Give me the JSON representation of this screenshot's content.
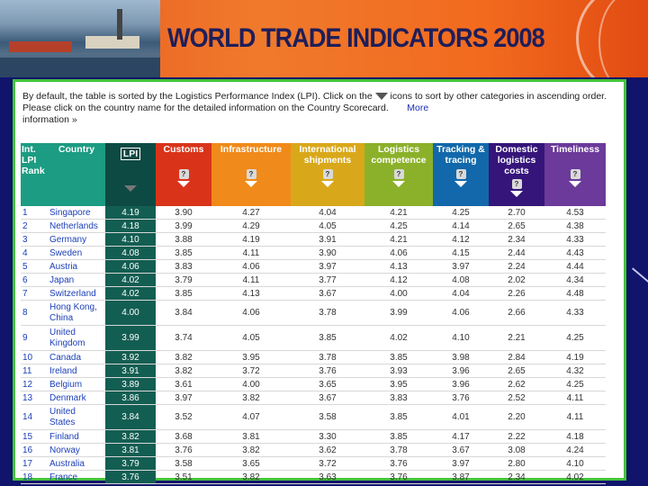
{
  "banner": {
    "title": "WORLD TRADE INDICATORS 2008"
  },
  "intro": {
    "text_before_icon": "By default, the table is sorted by the Logistics Performance Index (LPI). Click on the",
    "text_after_icon": "icons to sort by other categories in ascending order. Please click on the country name for the detailed information on the Country Scorecard.",
    "more_link": "More",
    "info_text": "information »"
  },
  "headers": {
    "rank": "Int. LPI Rank",
    "country": "Country",
    "lpi": "LPI",
    "customs": "Customs",
    "infrastructure": "Infrastructure",
    "international_shipments": "International shipments",
    "logistics_competence": "Logistics competence",
    "tracking_tracing": "Tracking & tracing",
    "domestic_logistics_costs": "Domestic logistics costs",
    "timeliness": "Timeliness",
    "help_symbol": "?"
  },
  "rows": [
    {
      "rank": "1",
      "country": "Singapore",
      "lpi": "4.19",
      "v": [
        "3.90",
        "4.27",
        "4.04",
        "4.21",
        "4.25",
        "2.70",
        "4.53"
      ]
    },
    {
      "rank": "2",
      "country": "Netherlands",
      "lpi": "4.18",
      "v": [
        "3.99",
        "4.29",
        "4.05",
        "4.25",
        "4.14",
        "2.65",
        "4.38"
      ]
    },
    {
      "rank": "3",
      "country": "Germany",
      "lpi": "4.10",
      "v": [
        "3.88",
        "4.19",
        "3.91",
        "4.21",
        "4.12",
        "2.34",
        "4.33"
      ]
    },
    {
      "rank": "4",
      "country": "Sweden",
      "lpi": "4.08",
      "v": [
        "3.85",
        "4.11",
        "3.90",
        "4.06",
        "4.15",
        "2.44",
        "4.43"
      ]
    },
    {
      "rank": "5",
      "country": "Austria",
      "lpi": "4.06",
      "v": [
        "3.83",
        "4.06",
        "3.97",
        "4.13",
        "3.97",
        "2.24",
        "4.44"
      ]
    },
    {
      "rank": "6",
      "country": "Japan",
      "lpi": "4.02",
      "v": [
        "3.79",
        "4.11",
        "3.77",
        "4.12",
        "4.08",
        "2.02",
        "4.34"
      ]
    },
    {
      "rank": "7",
      "country": "Switzerland",
      "lpi": "4.02",
      "v": [
        "3.85",
        "4.13",
        "3.67",
        "4.00",
        "4.04",
        "2.26",
        "4.48"
      ]
    },
    {
      "rank": "8",
      "country": "Hong Kong, China",
      "lpi": "4.00",
      "v": [
        "3.84",
        "4.06",
        "3.78",
        "3.99",
        "4.06",
        "2.66",
        "4.33"
      ]
    },
    {
      "rank": "9",
      "country": "United Kingdom",
      "lpi": "3.99",
      "v": [
        "3.74",
        "4.05",
        "3.85",
        "4.02",
        "4.10",
        "2.21",
        "4.25"
      ]
    },
    {
      "rank": "10",
      "country": "Canada",
      "lpi": "3.92",
      "v": [
        "3.82",
        "3.95",
        "3.78",
        "3.85",
        "3.98",
        "2.84",
        "4.19"
      ]
    },
    {
      "rank": "11",
      "country": "Ireland",
      "lpi": "3.91",
      "v": [
        "3.82",
        "3.72",
        "3.76",
        "3.93",
        "3.96",
        "2.65",
        "4.32"
      ]
    },
    {
      "rank": "12",
      "country": "Belgium",
      "lpi": "3.89",
      "v": [
        "3.61",
        "4.00",
        "3.65",
        "3.95",
        "3.96",
        "2.62",
        "4.25"
      ]
    },
    {
      "rank": "13",
      "country": "Denmark",
      "lpi": "3.86",
      "v": [
        "3.97",
        "3.82",
        "3.67",
        "3.83",
        "3.76",
        "2.52",
        "4.11"
      ]
    },
    {
      "rank": "14",
      "country": "United States",
      "lpi": "3.84",
      "v": [
        "3.52",
        "4.07",
        "3.58",
        "3.85",
        "4.01",
        "2.20",
        "4.11"
      ]
    },
    {
      "rank": "15",
      "country": "Finland",
      "lpi": "3.82",
      "v": [
        "3.68",
        "3.81",
        "3.30",
        "3.85",
        "4.17",
        "2.22",
        "4.18"
      ]
    },
    {
      "rank": "16",
      "country": "Norway",
      "lpi": "3.81",
      "v": [
        "3.76",
        "3.82",
        "3.62",
        "3.78",
        "3.67",
        "3.08",
        "4.24"
      ]
    },
    {
      "rank": "17",
      "country": "Australia",
      "lpi": "3.79",
      "v": [
        "3.58",
        "3.65",
        "3.72",
        "3.76",
        "3.97",
        "2.80",
        "4.10"
      ]
    },
    {
      "rank": "18",
      "country": "France",
      "lpi": "3.76",
      "v": [
        "3.51",
        "3.82",
        "3.63",
        "3.76",
        "3.87",
        "2.34",
        "4.02"
      ]
    }
  ]
}
